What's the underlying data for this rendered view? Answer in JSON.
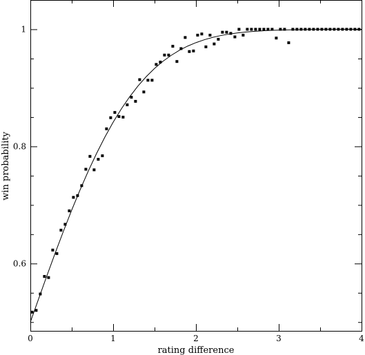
{
  "chart_data": {
    "type": "scatter",
    "title": "",
    "xlabel": "rating difference",
    "ylabel": "win probability",
    "xlim": [
      0,
      4
    ],
    "ylim": [
      0.485,
      1.05
    ],
    "grid": false,
    "x_ticks": [
      {
        "value": 0,
        "label": "0"
      },
      {
        "value": 1,
        "label": "1"
      },
      {
        "value": 2,
        "label": "2"
      },
      {
        "value": 3,
        "label": "3"
      },
      {
        "value": 4,
        "label": "4"
      }
    ],
    "y_ticks": [
      {
        "value": 0.6,
        "label": "0.6"
      },
      {
        "value": 0.8,
        "label": "0.8"
      },
      {
        "value": 1.0,
        "label": "1"
      }
    ],
    "series": [
      {
        "kind": "points",
        "x": [
          0.02,
          0.07,
          0.12,
          0.17,
          0.22,
          0.27,
          0.32,
          0.37,
          0.42,
          0.47,
          0.52,
          0.57,
          0.62,
          0.67,
          0.72,
          0.77,
          0.82,
          0.87,
          0.92,
          0.97,
          1.02,
          1.07,
          1.12,
          1.17,
          1.22,
          1.27,
          1.32,
          1.37,
          1.42,
          1.47,
          1.52,
          1.57,
          1.62,
          1.67,
          1.72,
          1.77,
          1.82,
          1.87,
          1.92,
          1.97,
          2.02,
          2.07,
          2.12,
          2.17,
          2.22,
          2.27,
          2.32,
          2.37,
          2.42,
          2.47,
          2.52,
          2.57,
          2.62,
          2.67,
          2.72,
          2.77,
          2.82,
          2.87,
          2.92,
          2.97,
          3.02,
          3.07,
          3.12,
          3.17,
          3.22,
          3.27,
          3.32,
          3.37,
          3.42,
          3.47,
          3.52,
          3.57,
          3.62,
          3.67,
          3.72,
          3.77,
          3.82,
          3.87,
          3.92,
          3.97
        ],
        "y": [
          0.517,
          0.52,
          0.548,
          0.578,
          0.576,
          0.623,
          0.617,
          0.657,
          0.667,
          0.69,
          0.713,
          0.716,
          0.733,
          0.761,
          0.783,
          0.76,
          0.778,
          0.784,
          0.83,
          0.849,
          0.858,
          0.851,
          0.85,
          0.871,
          0.884,
          0.877,
          0.914,
          0.893,
          0.913,
          0.913,
          0.94,
          0.944,
          0.956,
          0.956,
          0.971,
          0.945,
          0.967,
          0.986,
          0.962,
          0.963,
          0.99,
          0.992,
          0.97,
          0.99,
          0.975,
          0.983,
          0.995,
          0.995,
          0.993,
          0.987,
          1.0,
          0.99,
          1.0,
          1.0,
          1.0,
          1.0,
          1.0,
          1.0,
          1.0,
          0.985,
          1.0,
          1.0,
          0.977,
          1.0,
          1.0,
          1.0,
          1.0,
          1.0,
          1.0,
          1.0,
          1.0,
          1.0,
          1.0,
          1.0,
          1.0,
          1.0,
          1.0,
          1.0,
          1.0,
          1.0
        ]
      },
      {
        "kind": "line",
        "x": [
          0,
          0.1,
          0.2,
          0.3,
          0.4,
          0.5,
          0.6,
          0.7,
          0.8,
          0.9,
          1.0,
          1.1,
          1.2,
          1.3,
          1.4,
          1.5,
          1.6,
          1.7,
          1.8,
          1.9,
          2.0,
          2.1,
          2.2,
          2.3,
          2.4,
          2.5,
          2.6,
          2.7,
          2.8,
          2.9,
          3.0,
          3.2,
          3.4,
          3.6,
          3.8,
          4.0
        ],
        "y": [
          0.5,
          0.5398,
          0.5793,
          0.6179,
          0.6554,
          0.6915,
          0.7257,
          0.758,
          0.7881,
          0.8159,
          0.8413,
          0.8643,
          0.8849,
          0.9032,
          0.9192,
          0.9332,
          0.9452,
          0.9554,
          0.9641,
          0.9713,
          0.9772,
          0.9821,
          0.9861,
          0.9893,
          0.9918,
          0.9938,
          0.9953,
          0.9965,
          0.9974,
          0.9981,
          0.9987,
          0.9993,
          0.9997,
          0.9998,
          0.9999,
          1.0
        ]
      }
    ]
  }
}
